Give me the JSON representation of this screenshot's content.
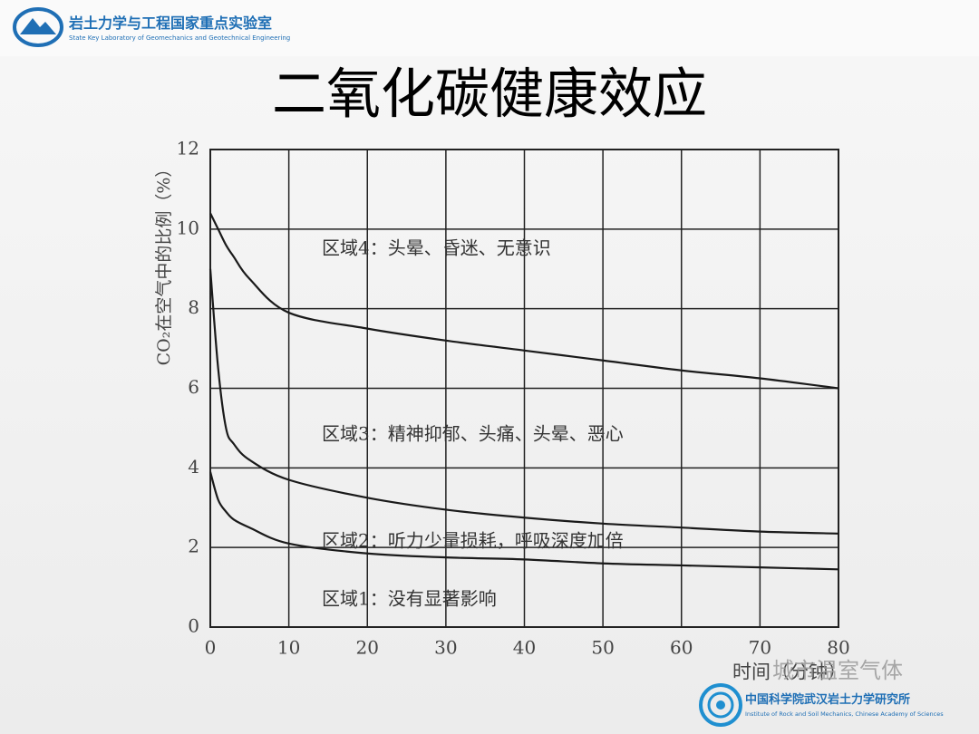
{
  "header": {
    "lab_name": "岩土力学与工程国家重点实验室",
    "lab_name_en": "State Key Laboratory of Geomechanics and Geotechnical Engineering"
  },
  "chart_data": {
    "type": "line",
    "title": "二氧化碳健康效应",
    "x_label": "时间（分钟）",
    "y_label": "CO₂在空气中的比例（%）",
    "x": [
      0,
      1,
      2,
      3,
      5,
      10,
      20,
      30,
      40,
      50,
      60,
      70,
      80
    ],
    "series": [
      {
        "color": "#1a1a1a",
        "values": [
          10.4,
          10.0,
          9.6,
          9.3,
          8.75,
          7.9,
          7.5,
          7.2,
          6.95,
          6.7,
          6.45,
          6.25,
          6.0
        ]
      },
      {
        "color": "#1a1a1a",
        "values": [
          9.0,
          6.5,
          5.0,
          4.6,
          4.2,
          3.7,
          3.25,
          2.95,
          2.75,
          2.6,
          2.5,
          2.4,
          2.35
        ]
      },
      {
        "color": "#1a1a1a",
        "values": [
          3.9,
          3.2,
          2.9,
          2.7,
          2.5,
          2.1,
          1.85,
          1.75,
          1.7,
          1.6,
          1.55,
          1.5,
          1.45
        ]
      }
    ],
    "annotations": [
      "区域4：头晕、昏迷、无意识",
      "区域3：精神抑郁、头痛、头晕、恶心",
      "区域2：听力少量损耗，呼吸深度加倍",
      "区域1：没有显著影响"
    ],
    "xlim": [
      0,
      80
    ],
    "xticks": [
      0,
      10,
      20,
      30,
      40,
      50,
      60,
      70,
      80
    ],
    "ylim": [
      0,
      12
    ],
    "yticks": [
      0,
      2,
      4,
      6,
      8,
      10,
      12
    ],
    "grid": true
  },
  "footer": {
    "institute": "中国科学院武汉岩土力学研究所",
    "institute_en": "Institute of Rock and Soil Mechanics, Chinese Academy of Sciences",
    "watermark": "城市温室气体"
  }
}
